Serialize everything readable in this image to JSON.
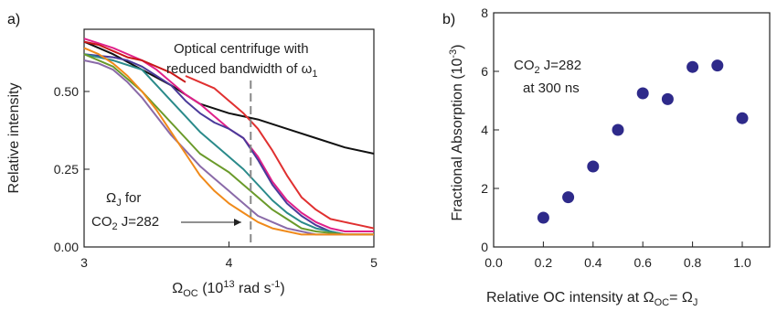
{
  "chart_data": [
    {
      "type": "line",
      "panel_label": "a)",
      "xlabel": {
        "main": "Ω",
        "sub": "OC",
        "rest": " (10",
        "sup": "13",
        "end": " rad s",
        "sup2": "-1",
        "close": ")"
      },
      "ylabel": "Relative intensity",
      "xlim": [
        3,
        5
      ],
      "ylim": [
        0,
        0.7
      ],
      "xticks": [
        "3",
        "4",
        "5"
      ],
      "yticks": [
        "0.00",
        "0.25",
        "0.50"
      ],
      "ytick_values": [
        0,
        0.25,
        0.5
      ],
      "xtick_values": [
        3,
        4,
        5
      ],
      "annotation_top": {
        "line1": "Optical centrifuge with",
        "line2_pre": "reduced bandwidth of ",
        "line2_sym": "ω",
        "line2_sub": "1"
      },
      "annotation_bottom": {
        "line1_sym": "Ω",
        "line1_sub": "J",
        "line1_rest": " for",
        "line2_pre": "CO",
        "line2_sub": "2",
        "line2_rest": " J=282"
      },
      "marker_x": 4.15,
      "colors": {
        "dashed": "#888888"
      },
      "series": [
        {
          "color": "#111111",
          "x": [
            3.0,
            3.2,
            3.4,
            3.6,
            3.8,
            4.0,
            4.2,
            4.4,
            4.6,
            4.8,
            5.0
          ],
          "y": [
            0.66,
            0.62,
            0.57,
            0.52,
            0.46,
            0.43,
            0.41,
            0.38,
            0.35,
            0.32,
            0.3
          ]
        },
        {
          "color": "#e03030",
          "x": [
            3.7,
            3.8,
            3.9,
            4.0,
            4.1,
            4.2,
            4.3,
            4.4,
            4.5,
            4.6,
            4.7,
            4.8,
            4.9,
            5.0
          ],
          "y": [
            0.55,
            0.53,
            0.51,
            0.47,
            0.43,
            0.38,
            0.31,
            0.23,
            0.16,
            0.12,
            0.09,
            0.08,
            0.07,
            0.06
          ]
        },
        {
          "color": "#e0208a",
          "x": [
            3.0,
            3.2,
            3.4,
            3.5,
            3.6,
            3.7,
            3.8,
            3.9,
            4.0,
            4.1,
            4.2,
            4.3,
            4.4,
            4.5,
            4.6,
            4.7,
            4.8,
            4.9,
            5.0
          ],
          "y": [
            0.67,
            0.64,
            0.6,
            0.57,
            0.53,
            0.49,
            0.46,
            0.42,
            0.38,
            0.35,
            0.29,
            0.21,
            0.15,
            0.11,
            0.08,
            0.06,
            0.05,
            0.05,
            0.05
          ]
        },
        {
          "color": "#4a3a9a",
          "x": [
            3.0,
            3.2,
            3.3,
            3.4,
            3.5,
            3.6,
            3.7,
            3.8,
            3.9,
            4.0,
            4.1,
            4.2,
            4.3,
            4.4,
            4.5,
            4.6,
            4.7,
            4.8,
            5.0
          ],
          "y": [
            0.62,
            0.61,
            0.6,
            0.58,
            0.55,
            0.52,
            0.47,
            0.43,
            0.4,
            0.38,
            0.35,
            0.28,
            0.2,
            0.14,
            0.1,
            0.07,
            0.05,
            0.04,
            0.04
          ]
        },
        {
          "color": "#c81818",
          "x": [
            3.0,
            3.1,
            3.2,
            3.3,
            3.4,
            3.5,
            3.6,
            3.7
          ],
          "y": [
            0.66,
            0.65,
            0.63,
            0.61,
            0.6,
            0.58,
            0.56,
            0.53
          ]
        },
        {
          "color": "#2a8a8a",
          "x": [
            3.0,
            3.2,
            3.4,
            3.5,
            3.6,
            3.7,
            3.8,
            3.9,
            4.0,
            4.1,
            4.2,
            4.3,
            4.4,
            4.5,
            4.6,
            4.7,
            4.8,
            5.0
          ],
          "y": [
            0.62,
            0.6,
            0.57,
            0.52,
            0.47,
            0.42,
            0.37,
            0.33,
            0.29,
            0.25,
            0.2,
            0.15,
            0.11,
            0.08,
            0.06,
            0.05,
            0.04,
            0.04
          ]
        },
        {
          "color": "#6a9a2a",
          "x": [
            3.0,
            3.2,
            3.3,
            3.4,
            3.5,
            3.6,
            3.7,
            3.8,
            3.9,
            4.0,
            4.1,
            4.2,
            4.3,
            4.4,
            4.5,
            4.6,
            4.8,
            5.0
          ],
          "y": [
            0.62,
            0.58,
            0.54,
            0.5,
            0.45,
            0.4,
            0.35,
            0.3,
            0.27,
            0.24,
            0.2,
            0.16,
            0.12,
            0.09,
            0.06,
            0.05,
            0.04,
            0.04
          ]
        },
        {
          "color": "#8a6aa8",
          "x": [
            3.0,
            3.1,
            3.2,
            3.3,
            3.4,
            3.5,
            3.6,
            3.7,
            3.8,
            3.9,
            4.0,
            4.1,
            4.2,
            4.3,
            4.4,
            4.5,
            4.6,
            4.8,
            5.0
          ],
          "y": [
            0.6,
            0.59,
            0.57,
            0.53,
            0.48,
            0.42,
            0.36,
            0.31,
            0.26,
            0.22,
            0.18,
            0.14,
            0.1,
            0.08,
            0.06,
            0.05,
            0.04,
            0.04,
            0.04
          ]
        },
        {
          "color": "#f08a1a",
          "x": [
            3.0,
            3.1,
            3.2,
            3.3,
            3.4,
            3.5,
            3.6,
            3.7,
            3.8,
            3.9,
            4.0,
            4.1,
            4.2,
            4.3,
            4.4,
            4.5,
            4.6,
            4.8,
            5.0
          ],
          "y": [
            0.64,
            0.62,
            0.59,
            0.55,
            0.5,
            0.44,
            0.37,
            0.3,
            0.23,
            0.18,
            0.14,
            0.11,
            0.08,
            0.06,
            0.05,
            0.04,
            0.04,
            0.04,
            0.04
          ]
        }
      ]
    },
    {
      "type": "scatter",
      "panel_label": "b)",
      "xlabel": {
        "pre": "Relative OC intensity at ",
        "sym": "Ω",
        "sub": "OC",
        "eq": "= ",
        "sym2": "Ω",
        "sub2": "J"
      },
      "ylabel": {
        "main": "Fractional Absorption (10",
        "sup": "-3",
        "close": ")"
      },
      "xlim": [
        0,
        1.1
      ],
      "ylim": [
        0,
        8
      ],
      "xticks": [
        "0.0",
        "0.2",
        "0.4",
        "0.6",
        "0.8",
        "1.0"
      ],
      "xtick_values": [
        0,
        0.2,
        0.4,
        0.6,
        0.8,
        1.0
      ],
      "yticks": [
        "0",
        "2",
        "4",
        "6",
        "8"
      ],
      "ytick_values": [
        0,
        2,
        4,
        6,
        8
      ],
      "annotation": {
        "line1_pre": "CO",
        "line1_sub": "2",
        "line1_rest": " J=282",
        "line2": "at 300 ns"
      },
      "colors": {
        "marker": "#2e2a8a"
      },
      "x": [
        0.2,
        0.3,
        0.4,
        0.5,
        0.6,
        0.7,
        0.8,
        0.9,
        1.0
      ],
      "y": [
        1.0,
        1.7,
        2.75,
        4.0,
        5.25,
        5.05,
        6.15,
        6.2,
        4.4
      ]
    }
  ]
}
